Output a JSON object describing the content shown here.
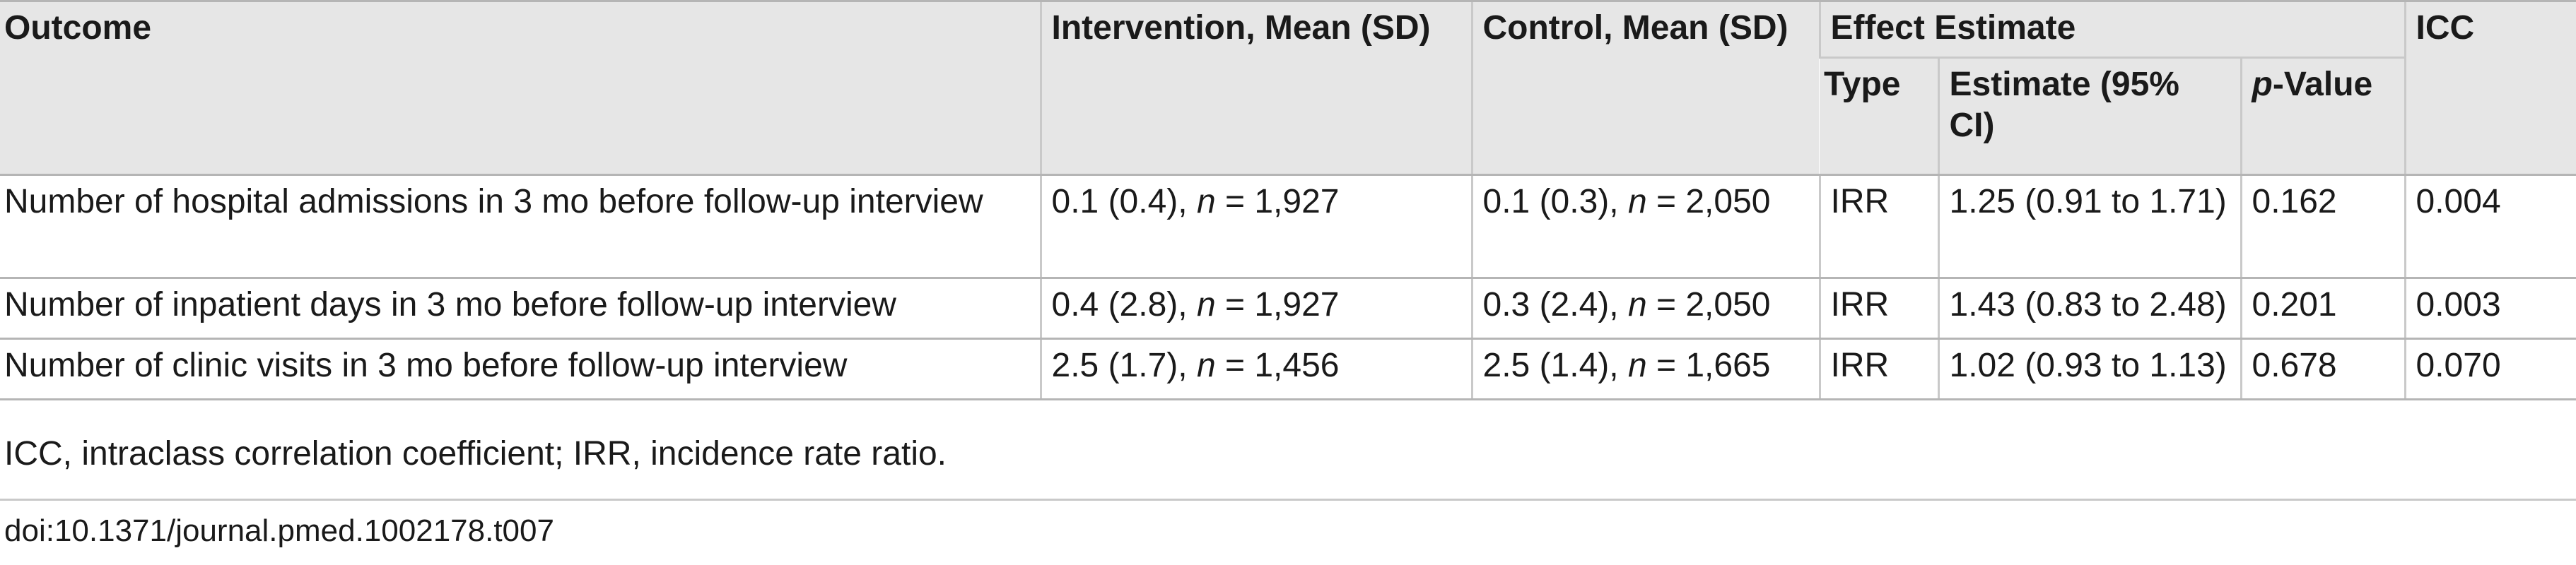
{
  "table": {
    "headers": {
      "outcome": "Outcome",
      "intervention": "Intervention, Mean (SD)",
      "control": "Control, Mean (SD)",
      "effect_estimate": "Effect Estimate",
      "type": "Type",
      "estimate": "Estimate (95% CI)",
      "p_value_italic": "p",
      "p_value_rest": "-Value",
      "icc": "ICC"
    },
    "n_label": "n",
    "rows": [
      {
        "outcome": "Number of hospital admissions in 3 mo before follow-up interview",
        "intervention_mean": "0.1 (0.4), ",
        "intervention_n": " = 1,927",
        "control_mean": "0.1 (0.3), ",
        "control_n": " = 2,050",
        "type": "IRR",
        "estimate": "1.25 (0.91 to 1.71)",
        "p_value": "0.162",
        "icc": "0.004"
      },
      {
        "outcome": "Number of inpatient days in 3 mo before follow-up interview",
        "intervention_mean": "0.4 (2.8), ",
        "intervention_n": " = 1,927",
        "control_mean": "0.3 (2.4), ",
        "control_n": " = 2,050",
        "type": "IRR",
        "estimate": "1.43 (0.83 to 2.48)",
        "p_value": "0.201",
        "icc": "0.003"
      },
      {
        "outcome": "Number of clinic visits in 3 mo before follow-up interview",
        "intervention_mean": "2.5 (1.7), ",
        "intervention_n": " = 1,456",
        "control_mean": "2.5 (1.4), ",
        "control_n": " = 1,665",
        "type": "IRR",
        "estimate": "1.02 (0.93 to 1.13)",
        "p_value": "0.678",
        "icc": "0.070"
      }
    ]
  },
  "footnote": "ICC, intraclass correlation coefficient; IRR, incidence rate ratio.",
  "doi": "doi:10.1371/journal.pmed.1002178.t007"
}
